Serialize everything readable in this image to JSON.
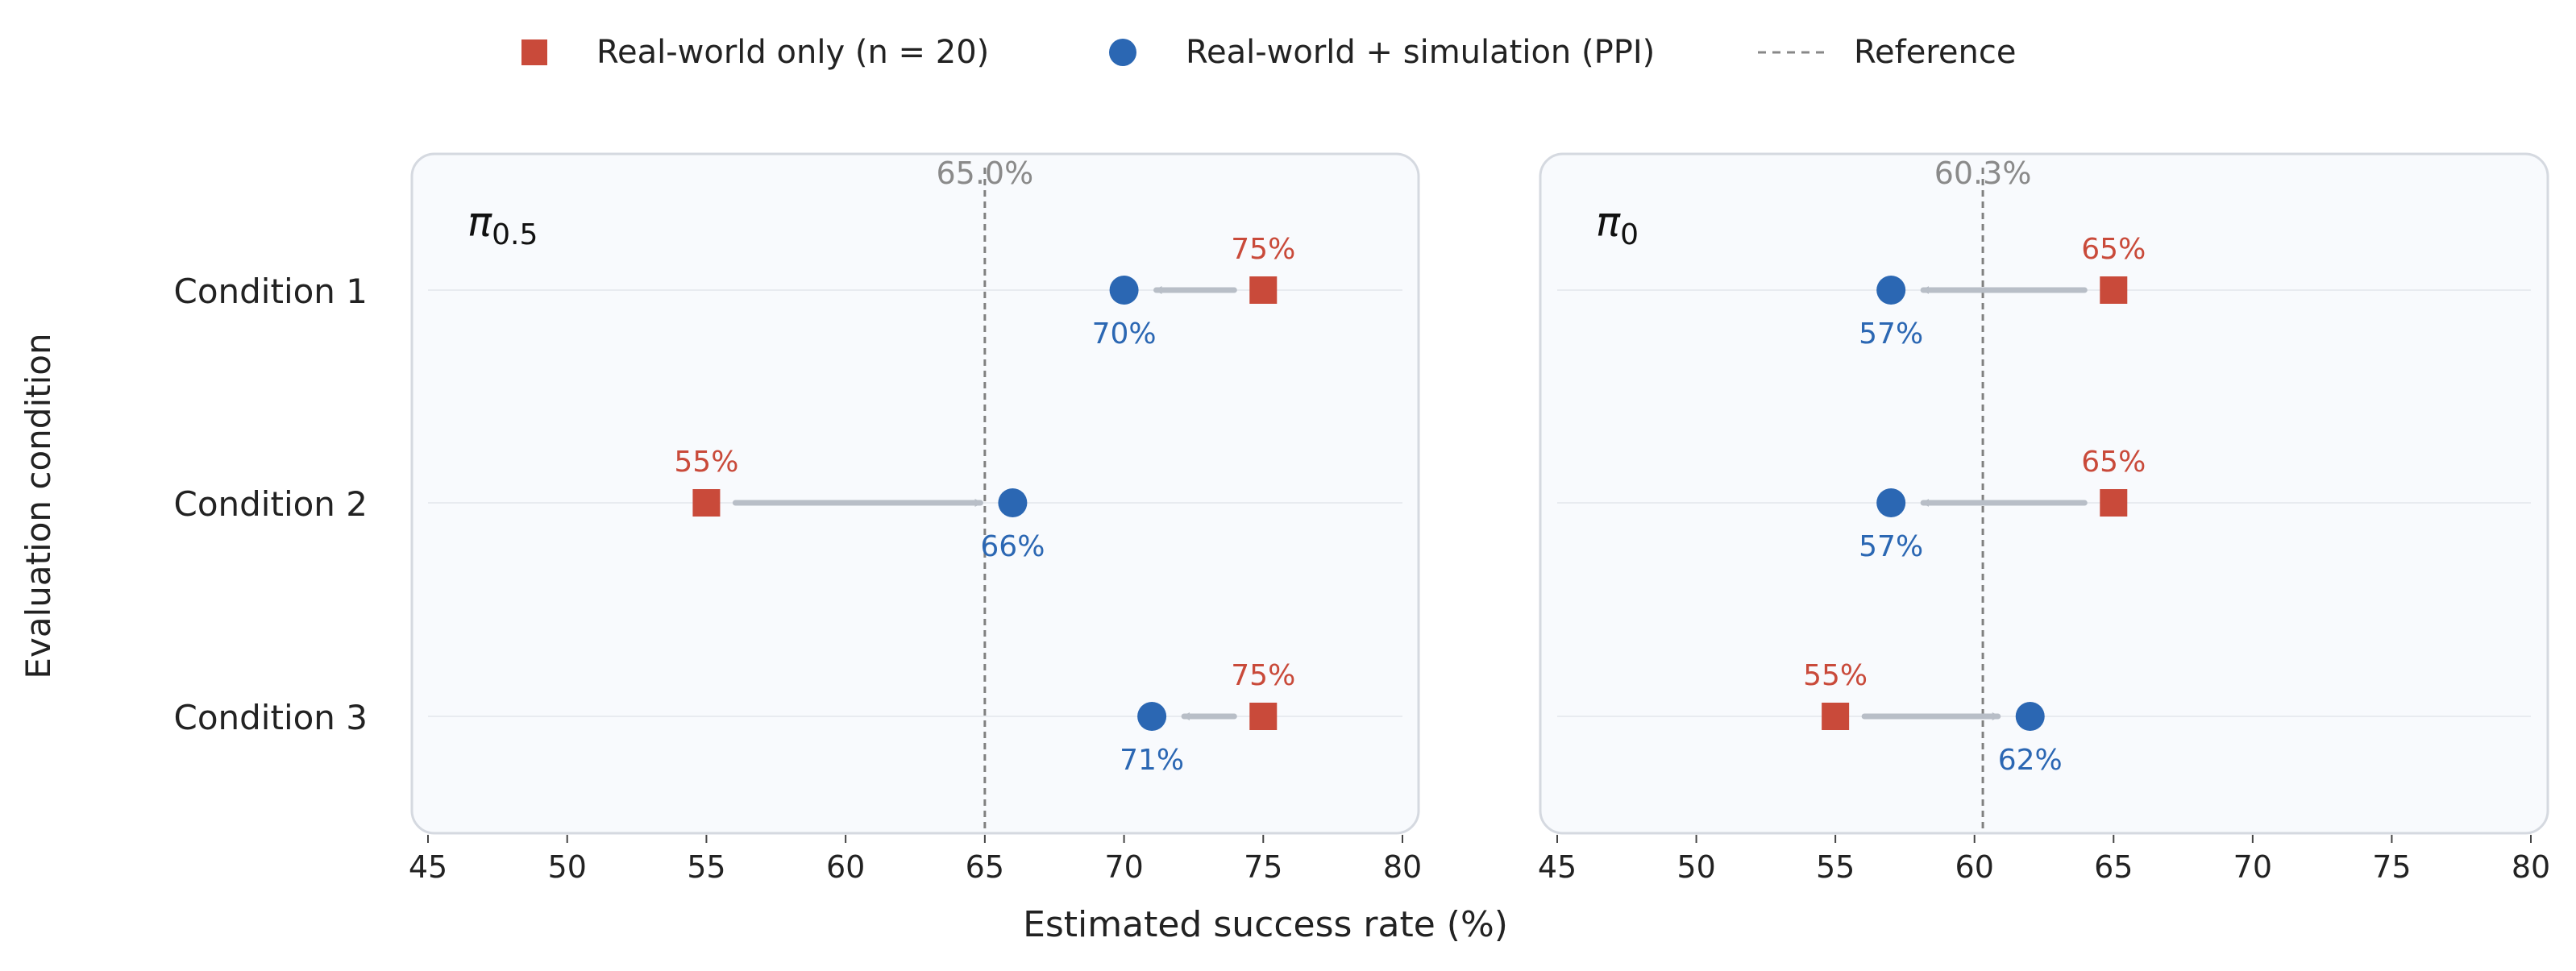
{
  "figure": {
    "ylabel": "Evaluation condition",
    "xlabel": "Estimated success rate (%)"
  },
  "legend": {
    "placement": "top-center",
    "items": [
      {
        "label": "Real-world only (n = 20)",
        "marker": "square",
        "color": "#c94a3a"
      },
      {
        "label": "Real-world + simulation (PPI)",
        "marker": "circle",
        "color": "#2b67b3"
      },
      {
        "label": "Reference",
        "marker": "dashed-line",
        "color": "#888888"
      }
    ]
  },
  "colors": {
    "real": "#c94a3a",
    "ppi": "#2b67b3",
    "arrow": "#b8bec7",
    "reference": "#808080",
    "panel_bg": "#f8fafd",
    "panel_border": "#d5d9e0"
  },
  "chart_data": [
    {
      "type": "scatter",
      "title_base": "π",
      "title_sub": "0.5",
      "categories": [
        "Condition 1",
        "Condition 2",
        "Condition 3"
      ],
      "xlim": [
        45,
        80
      ],
      "xticks": [
        45,
        50,
        55,
        60,
        65,
        70,
        75,
        80
      ],
      "reference": {
        "value": 65.0,
        "label": "65.0%"
      },
      "series": [
        {
          "name": "Real-world only (n = 20)",
          "values": [
            75,
            55,
            75
          ],
          "labels": [
            "75%",
            "55%",
            "75%"
          ]
        },
        {
          "name": "Real-world + simulation (PPI)",
          "values": [
            70,
            66,
            71
          ],
          "labels": [
            "70%",
            "66%",
            "71%"
          ]
        }
      ]
    },
    {
      "type": "scatter",
      "title_base": "π",
      "title_sub": "0",
      "categories": [
        "Condition 1",
        "Condition 2",
        "Condition 3"
      ],
      "xlim": [
        45,
        80
      ],
      "xticks": [
        45,
        50,
        55,
        60,
        65,
        70,
        75,
        80
      ],
      "reference": {
        "value": 60.3,
        "label": "60.3%"
      },
      "series": [
        {
          "name": "Real-world only (n = 20)",
          "values": [
            65,
            65,
            55
          ],
          "labels": [
            "65%",
            "65%",
            "55%"
          ]
        },
        {
          "name": "Real-world + simulation (PPI)",
          "values": [
            57,
            57,
            62
          ],
          "labels": [
            "57%",
            "57%",
            "62%"
          ]
        }
      ]
    }
  ]
}
